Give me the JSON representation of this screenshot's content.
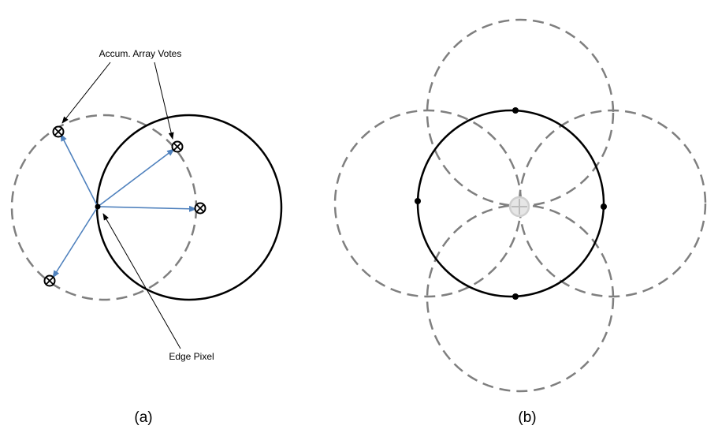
{
  "panel_a": {
    "votes_label": "Accum. Array Votes",
    "edge_label": "Edge Pixel",
    "caption": "(a)"
  },
  "panel_b": {
    "caption": "(b)"
  },
  "colors": {
    "solid_circle": "#000000",
    "dashed_circle": "#7f7f7f",
    "vote_arrow": "#4f81bd",
    "center_marker": "#d9d9d9"
  }
}
